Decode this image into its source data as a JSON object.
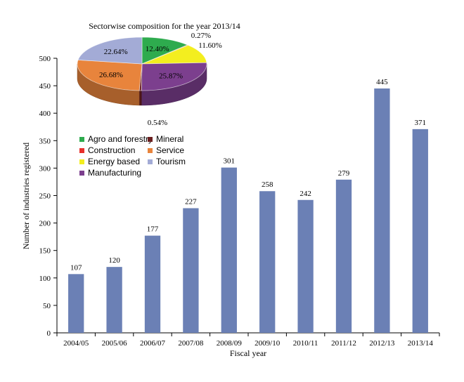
{
  "chart_data": [
    {
      "type": "bar",
      "xlabel": "Fiscal year",
      "ylabel": "Number of industries registered",
      "ylim": [
        0,
        500
      ],
      "yticks": [
        0,
        50,
        100,
        150,
        200,
        250,
        300,
        350,
        400,
        450,
        500
      ],
      "categories": [
        "2004/05",
        "2005/06",
        "2006/07",
        "2007/08",
        "2008/09",
        "2009/10",
        "2010/11",
        "2011/12",
        "2012/13",
        "2013/14"
      ],
      "values": [
        107,
        120,
        177,
        227,
        301,
        258,
        242,
        279,
        445,
        371
      ],
      "bar_color": "#6b80b5",
      "grid": false
    },
    {
      "type": "pie",
      "title": "Sectorwise composition for the year 2013/14",
      "slices": [
        {
          "name": "Agro and forestry",
          "value": 12.4,
          "label": "12.40%",
          "color": "#2eab4e"
        },
        {
          "name": "Construction",
          "value": 0.27,
          "label": "0.27%",
          "color": "#e8302c"
        },
        {
          "name": "Energy based",
          "value": 11.6,
          "label": "11.60%",
          "color": "#f3ee1f"
        },
        {
          "name": "Manufacturing",
          "value": 25.87,
          "label": "25.87%",
          "color": "#7c3f8e"
        },
        {
          "name": "Mineral",
          "value": 0.54,
          "label": "0.54%",
          "color": "#6b1f1f"
        },
        {
          "name": "Service",
          "value": 26.68,
          "label": "26.68%",
          "color": "#e8843c"
        },
        {
          "name": "Tourism",
          "value": 22.64,
          "label": "22.64%",
          "color": "#a3abd6"
        }
      ],
      "legend": {
        "placement": "top-left",
        "columns": [
          [
            "Agro and forestry",
            "Construction",
            "Energy based",
            "Manufacturing"
          ],
          [
            "Mineral",
            "Service",
            "Tourism"
          ]
        ]
      }
    }
  ]
}
